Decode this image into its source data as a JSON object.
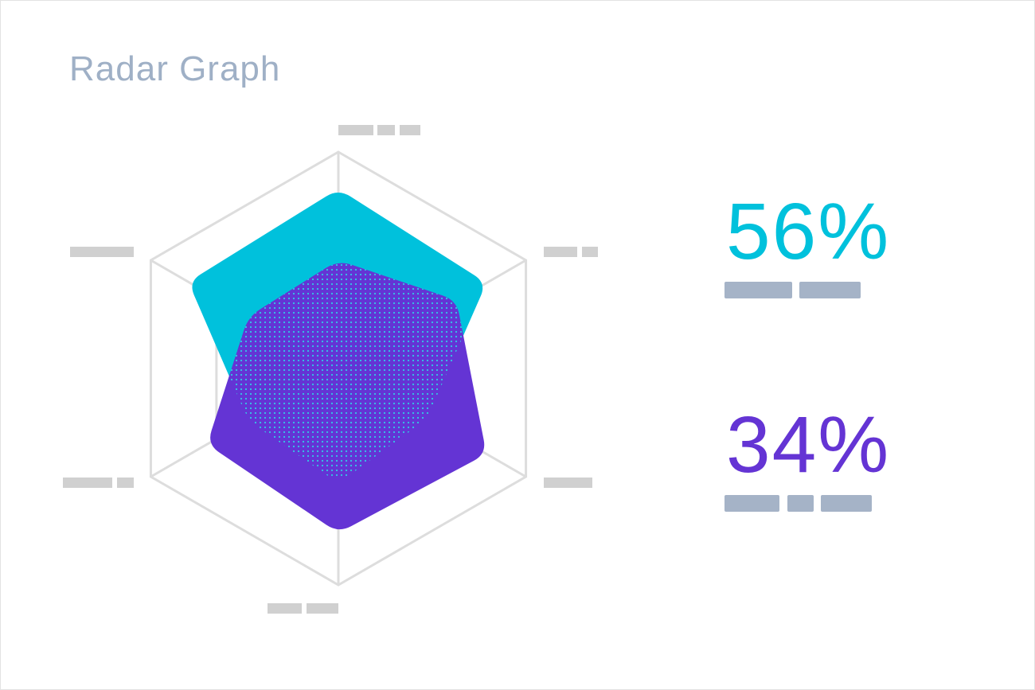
{
  "title": "Radar Graph",
  "colors": {
    "series_a": "#00c1dc",
    "series_b": "#6434d4",
    "grid": "#dddddd",
    "placeholder_label": "#d0d0d0",
    "placeholder_caption": "#a5b3c7",
    "dots": "#33c7e6"
  },
  "chart_data": {
    "type": "radar",
    "axes": 6,
    "levels": 3,
    "range": [
      0,
      1
    ],
    "series": [
      {
        "values": [
          0.83,
          0.79,
          0.47,
          0.53,
          0.48,
          0.8
        ]
      },
      {
        "values": [
          0.5,
          0.63,
          0.79,
          0.76,
          0.7,
          0.48
        ]
      }
    ]
  },
  "stats": [
    {
      "value": "56%",
      "color": "#00c1dc"
    },
    {
      "value": "34%",
      "color": "#6434d4"
    }
  ]
}
